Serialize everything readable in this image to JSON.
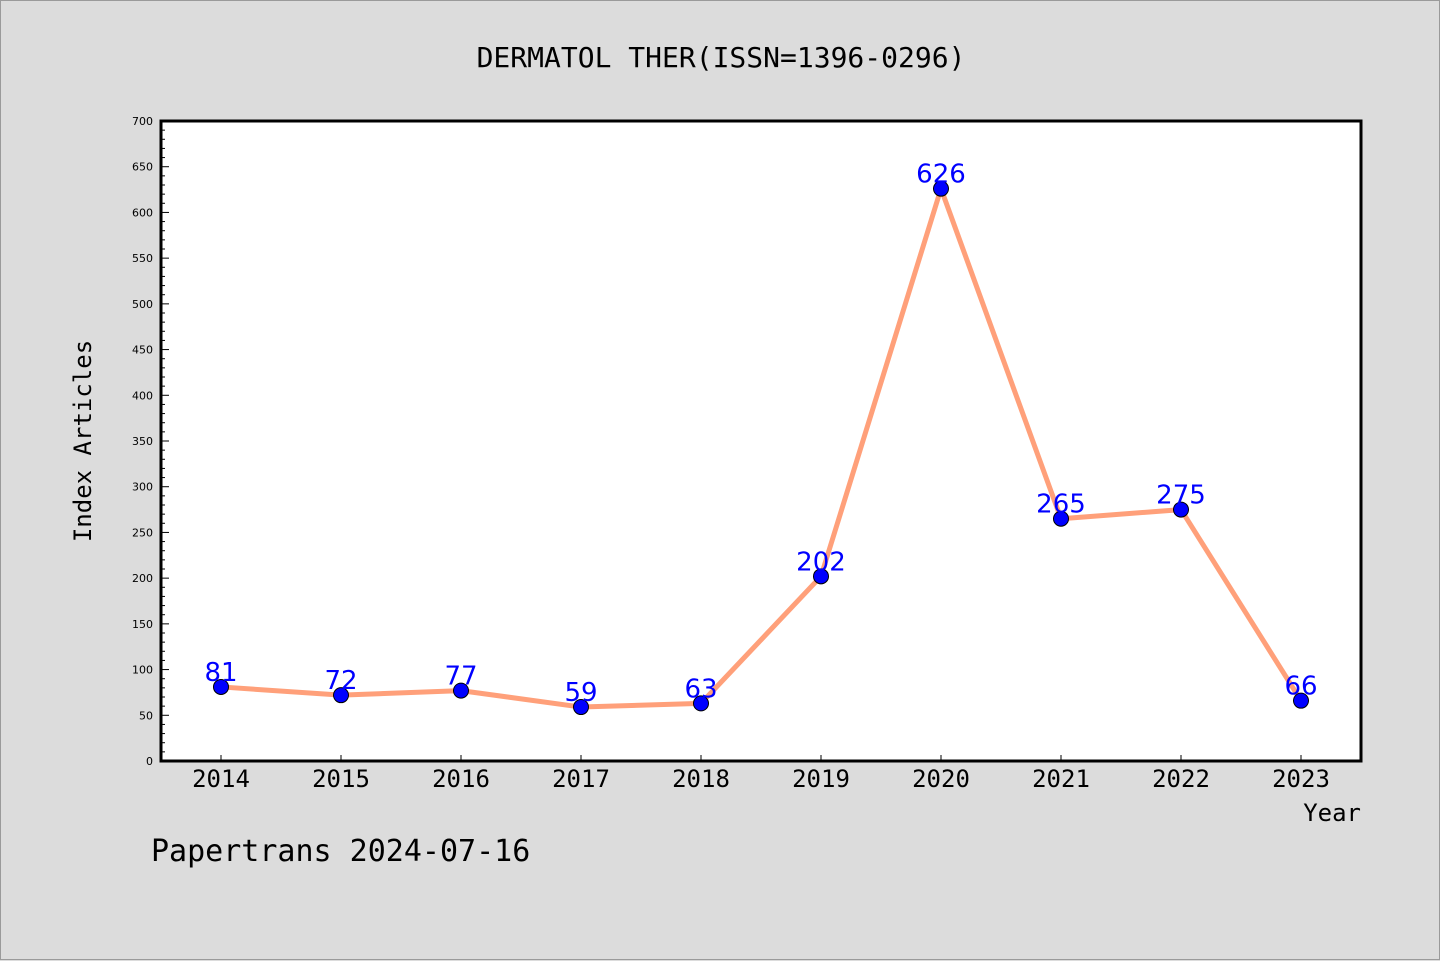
{
  "chart_data": {
    "type": "line",
    "title": "DERMATOL THER(ISSN=1396-0296)",
    "xlabel": "Year",
    "ylabel": "Index Articles",
    "categories": [
      "2014",
      "2015",
      "2016",
      "2017",
      "2018",
      "2019",
      "2020",
      "2021",
      "2022",
      "2023"
    ],
    "series": [
      {
        "values": [
          81,
          72,
          77,
          59,
          63,
          202,
          626,
          265,
          275,
          66
        ]
      }
    ],
    "ylim": [
      0,
      700
    ],
    "yticks": [
      0,
      50,
      100,
      150,
      200,
      250,
      300,
      350,
      400,
      450,
      500,
      550,
      600,
      650,
      700
    ],
    "grid": false,
    "line_color": "#ffa07a",
    "marker_color": "#0000ff",
    "label_color": "#0000ff"
  },
  "footer": {
    "text": "Papertrans 2024-07-16"
  }
}
